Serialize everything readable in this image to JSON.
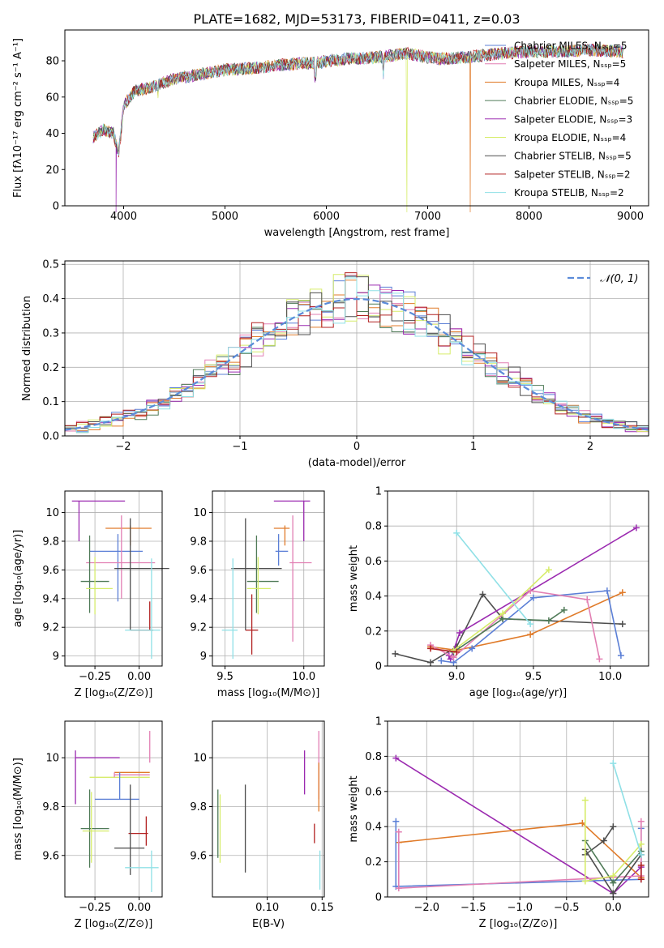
{
  "figure": {
    "title": "PLATE=1682, MJD=53173, FIBERID=0411, z=0.03"
  },
  "colors": {
    "chabrier_miles": "#5b7fd6",
    "salpeter_miles": "#e27fb3",
    "kroupa_miles": "#e07b2a",
    "chabrier_elodie": "#4f7a57",
    "salpeter_elodie": "#9b2ab0",
    "kroupa_elodie": "#d6ec6a",
    "chabrier_stelib": "#4d4d4d",
    "salpeter_stelib": "#b22020",
    "kroupa_stelib": "#8fe0e6",
    "gaussian": "#5b8bd9",
    "grid": "#b0b0b0"
  },
  "chart_data": [
    {
      "id": "spectrum",
      "type": "line",
      "title": "PLATE=1682, MJD=53173, FIBERID=0411, z=0.03",
      "xlabel": "wavelength [Angstrom, rest frame]",
      "ylabel": "Flux [fλ10⁻¹⁷ erg cm⁻² s⁻¹ A⁻¹]",
      "xlim": [
        3420,
        9180
      ],
      "ylim": [
        0,
        97
      ],
      "xticks": [
        4000,
        5000,
        6000,
        7000,
        8000,
        9000
      ],
      "yticks": [
        0,
        20,
        40,
        60,
        80
      ],
      "grid": false,
      "legend_position": "top-right",
      "legend": [
        {
          "label": "Chabrier MILES, Nₛₛₚ=5",
          "color_key": "chabrier_miles"
        },
        {
          "label": "Salpeter MILES, Nₛₛₚ=5",
          "color_key": "salpeter_miles"
        },
        {
          "label": "Kroupa MILES, Nₛₛₚ=4",
          "color_key": "kroupa_miles"
        },
        {
          "label": "Chabrier ELODIE, Nₛₛₚ=5",
          "color_key": "chabrier_elodie"
        },
        {
          "label": "Salpeter ELODIE, Nₛₛₚ=3",
          "color_key": "salpeter_elodie"
        },
        {
          "label": "Kroupa ELODIE, Nₛₛₚ=4",
          "color_key": "kroupa_elodie"
        },
        {
          "label": "Chabrier STELIB, Nₛₛₚ=5",
          "color_key": "chabrier_stelib"
        },
        {
          "label": "Salpeter STELIB, Nₛₛₚ=2",
          "color_key": "salpeter_stelib"
        },
        {
          "label": "Kroupa STELIB, Nₛₛₚ=2",
          "color_key": "kroupa_stelib"
        }
      ],
      "continuum": {
        "x": [
          3700,
          3800,
          3900,
          3950,
          4000,
          4100,
          4300,
          4500,
          4700,
          5000,
          5300,
          5600,
          5900,
          6200,
          6500,
          6800,
          7100,
          7400,
          7700,
          8000,
          8300,
          8600,
          8900
        ],
        "y": [
          38,
          42,
          40,
          28,
          55,
          63,
          66,
          70,
          72,
          75,
          76,
          78,
          79,
          81,
          82,
          84,
          81,
          82,
          84,
          85,
          85,
          86,
          85
        ]
      },
      "dips": [
        {
          "series": "salpeter_elodie",
          "x": 3925,
          "y": 0
        },
        {
          "series": "kroupa_elodie",
          "x": 6795,
          "y": 0
        },
        {
          "series": "kroupa_miles",
          "x": 7420,
          "y": 0
        }
      ]
    },
    {
      "id": "residuals",
      "type": "histogram",
      "xlabel": "(data-model)/error",
      "ylabel": "Normed distribution",
      "xlim": [
        -2.5,
        2.5
      ],
      "ylim": [
        0,
        0.51
      ],
      "xticks": [
        -2,
        -1,
        0,
        1,
        2
      ],
      "yticks": [
        0.0,
        0.1,
        0.2,
        0.3,
        0.4,
        0.5
      ],
      "grid": true,
      "legend_position": "top-right",
      "legend": [
        {
          "label": "𝒩(0, 1)",
          "color_key": "gaussian"
        }
      ],
      "bin_width": 0.1
    },
    {
      "id": "age-vs-Z",
      "type": "scatter",
      "xlabel": "Z [log₁₀(Z/Z⊙)]",
      "ylabel": "age  [log₁₀(age/yr)]",
      "xlim": [
        -0.42,
        0.13
      ],
      "ylim": [
        8.93,
        10.15
      ],
      "xticks": [
        -0.25,
        0.0
      ],
      "xtick_labels": [
        "−0.25",
        "0.00"
      ],
      "yticks": [
        9.0,
        9.2,
        9.4,
        9.6,
        9.8,
        10.0
      ],
      "grid": true,
      "points": [
        {
          "series": "salpeter_elodie",
          "x": -0.34,
          "xerr": [
            0.04,
            0.26
          ],
          "y": 10.08,
          "yerr": [
            0.28,
            0.0
          ]
        },
        {
          "series": "kroupa_miles",
          "x": -0.05,
          "xerr": [
            0.14,
            0.12
          ],
          "y": 9.89,
          "yerr": [
            0.12,
            0.02
          ]
        },
        {
          "series": "chabrier_miles",
          "x": -0.12,
          "xerr": [
            0.16,
            0.14
          ],
          "y": 9.73,
          "yerr": [
            0.35,
            0.12
          ]
        },
        {
          "series": "salpeter_miles",
          "x": -0.1,
          "xerr": [
            0.2,
            0.19
          ],
          "y": 9.65,
          "yerr": [
            0.25,
            0.33
          ]
        },
        {
          "series": "chabrier_stelib",
          "x": -0.05,
          "xerr": [
            0.09,
            0.22
          ],
          "y": 9.61,
          "yerr": [
            0.43,
            0.35
          ]
        },
        {
          "series": "chabrier_elodie",
          "x": -0.28,
          "xerr": [
            0.05,
            0.11
          ],
          "y": 9.52,
          "yerr": [
            0.22,
            0.32
          ]
        },
        {
          "series": "kroupa_elodie",
          "x": -0.25,
          "xerr": [
            0.05,
            0.1
          ],
          "y": 9.47,
          "yerr": [
            0.18,
            0.22
          ]
        },
        {
          "series": "salpeter_stelib",
          "x": 0.06,
          "xerr": [
            0.11,
            0.02
          ],
          "y": 9.18,
          "yerr": [
            0.0,
            0.2
          ]
        },
        {
          "series": "kroupa_stelib",
          "x": 0.07,
          "xerr": [
            0.15,
            0.05
          ],
          "y": 9.18,
          "yerr": [
            0.2,
            0.5
          ]
        }
      ]
    },
    {
      "id": "age-vs-mass",
      "type": "scatter",
      "xlabel": "mass [log₁₀(M/M⊙)]",
      "xlim": [
        9.42,
        10.13
      ],
      "ylim": [
        8.93,
        10.15
      ],
      "xticks": [
        9.5,
        10.0
      ],
      "xtick_labels": [
        "9.5",
        "10.0"
      ],
      "yticks": [
        9.0,
        9.2,
        9.4,
        9.6,
        9.8,
        10.0
      ],
      "grid": true,
      "points": [
        {
          "series": "salpeter_elodie",
          "x": 10.0,
          "xerr": [
            0.19,
            0.04
          ],
          "y": 10.08,
          "yerr": [
            0.28,
            0.0
          ]
        },
        {
          "series": "kroupa_miles",
          "x": 9.88,
          "xerr": [
            0.07,
            0.03
          ],
          "y": 9.89,
          "yerr": [
            0.12,
            0.02
          ]
        },
        {
          "series": "chabrier_miles",
          "x": 9.84,
          "xerr": [
            0.02,
            0.06
          ],
          "y": 9.73,
          "yerr": [
            0.1,
            0.12
          ]
        },
        {
          "series": "salpeter_miles",
          "x": 9.93,
          "xerr": [
            0.02,
            0.12
          ],
          "y": 9.65,
          "yerr": [
            0.55,
            0.33
          ]
        },
        {
          "series": "chabrier_stelib",
          "x": 9.63,
          "xerr": [
            0.09,
            0.23
          ],
          "y": 9.61,
          "yerr": [
            0.43,
            0.35
          ]
        },
        {
          "series": "chabrier_elodie",
          "x": 9.7,
          "xerr": [
            0.06,
            0.14
          ],
          "y": 9.52,
          "yerr": [
            0.22,
            0.32
          ]
        },
        {
          "series": "kroupa_elodie",
          "x": 9.71,
          "xerr": [
            0.07,
            0.08
          ],
          "y": 9.47,
          "yerr": [
            0.18,
            0.22
          ]
        },
        {
          "series": "salpeter_stelib",
          "x": 9.67,
          "xerr": [
            0.04,
            0.04
          ],
          "y": 9.18,
          "yerr": [
            0.17,
            0.25
          ]
        },
        {
          "series": "kroupa_stelib",
          "x": 9.55,
          "xerr": [
            0.07,
            0.03
          ],
          "y": 9.18,
          "yerr": [
            0.2,
            0.5
          ]
        }
      ]
    },
    {
      "id": "weight-vs-age",
      "type": "line",
      "xlabel": "age  [log₁₀(age/yr)]",
      "ylabel": "mass weight",
      "xlim": [
        8.55,
        10.25
      ],
      "ylim": [
        0,
        1
      ],
      "xticks": [
        9.0,
        9.5,
        10.0
      ],
      "xtick_labels": [
        "9.0",
        "9.5",
        "10.0"
      ],
      "yticks": [
        0.0,
        0.2,
        0.4,
        0.6,
        0.8,
        1.0
      ],
      "grid": true,
      "series": [
        {
          "key": "chabrier_stelib",
          "x": [
            8.6,
            8.83,
            9.0,
            9.17,
            9.3,
            10.08
          ],
          "y": [
            0.07,
            0.02,
            0.11,
            0.41,
            0.27,
            0.24
          ]
        },
        {
          "key": "salpeter_elodie",
          "x": [
            8.95,
            8.96,
            9.02,
            10.17
          ],
          "y": [
            0.06,
            0.04,
            0.19,
            0.79
          ]
        },
        {
          "key": "kroupa_miles",
          "x": [
            8.83,
            9.0,
            9.48,
            10.08
          ],
          "y": [
            0.11,
            0.09,
            0.18,
            0.42
          ]
        },
        {
          "key": "chabrier_miles",
          "x": [
            8.9,
            8.98,
            9.1,
            9.5,
            9.98,
            10.07
          ],
          "y": [
            0.03,
            0.02,
            0.1,
            0.39,
            0.43,
            0.06
          ]
        },
        {
          "key": "salpeter_miles",
          "x": [
            8.83,
            8.98,
            9.48,
            9.85,
            9.93
          ],
          "y": [
            0.12,
            0.05,
            0.43,
            0.38,
            0.04
          ]
        },
        {
          "key": "chabrier_elodie",
          "x": [
            8.98,
            9.3,
            9.6,
            9.7
          ],
          "y": [
            0.08,
            0.27,
            0.26,
            0.32
          ]
        },
        {
          "key": "kroupa_elodie",
          "x": [
            8.98,
            9.3,
            9.6
          ],
          "y": [
            0.09,
            0.3,
            0.55
          ]
        },
        {
          "key": "salpeter_stelib",
          "x": [
            8.83,
            9.0
          ],
          "y": [
            0.1,
            0.08
          ]
        },
        {
          "key": "kroupa_stelib",
          "x": [
            9.0,
            9.48
          ],
          "y": [
            0.76,
            0.24
          ]
        }
      ]
    },
    {
      "id": "mass-vs-Z",
      "type": "scatter",
      "xlabel": "Z [log₁₀(Z/Z⊙)]",
      "ylabel": "mass [log₁₀(M/M⊙)]",
      "xlim": [
        -0.42,
        0.13
      ],
      "ylim": [
        9.43,
        10.15
      ],
      "xticks": [
        -0.25,
        0.0
      ],
      "xtick_labels": [
        "−0.25",
        "0.00"
      ],
      "yticks": [
        9.6,
        9.8,
        10.0
      ],
      "grid": true,
      "points": [
        {
          "series": "salpeter_elodie",
          "x": -0.36,
          "xerr": [
            0.0,
            0.25
          ],
          "y": 10.0,
          "yerr": [
            0.19,
            0.03
          ]
        },
        {
          "series": "kroupa_elodie",
          "x": -0.14,
          "xerr": [
            0.14,
            0.2
          ],
          "y": 9.92,
          "yerr": [
            0.0,
            0.0
          ]
        },
        {
          "series": "kroupa_miles",
          "x": -0.14,
          "xerr": [
            0.0,
            0.2
          ],
          "y": 9.94,
          "yerr": [
            0.0,
            0.0
          ]
        },
        {
          "series": "salpeter_miles",
          "x": -0.14,
          "xerr": [
            0.0,
            0.2
          ],
          "y": 9.93,
          "yerr": [
            0.01,
            0.01
          ]
        },
        {
          "series": "chabrier_miles",
          "x": -0.11,
          "xerr": [
            0.14,
            0.11
          ],
          "y": 9.83,
          "yerr": [
            0.0,
            0.11
          ]
        },
        {
          "series": "chabrier_elodie",
          "x": -0.28,
          "xerr": [
            0.05,
            0.11
          ],
          "y": 9.71,
          "yerr": [
            0.16,
            0.16
          ]
        },
        {
          "series": "kroupa_elodie",
          "x": -0.27,
          "xerr": [
            0.05,
            0.1
          ],
          "y": 9.7,
          "yerr": [
            0.13,
            0.16
          ]
        },
        {
          "series": "salpeter_stelib",
          "x": 0.04,
          "xerr": [
            0.1,
            0.01
          ],
          "y": 9.69,
          "yerr": [
            0.05,
            0.07
          ]
        },
        {
          "series": "chabrier_stelib",
          "x": -0.05,
          "xerr": [
            0.09,
            0.08
          ],
          "y": 9.63,
          "yerr": [
            0.11,
            0.26
          ]
        },
        {
          "series": "kroupa_stelib",
          "x": 0.07,
          "xerr": [
            0.15,
            0.04
          ],
          "y": 9.55,
          "yerr": [
            0.1,
            0.07
          ]
        },
        {
          "series": "salpeter_miles",
          "x": 0.06,
          "xerr": [
            0.0,
            0.0
          ],
          "y": 10.03,
          "yerr": [
            0.05,
            0.08
          ]
        }
      ]
    },
    {
      "id": "mass-vs-EBV",
      "type": "scatter",
      "xlabel": "E(B-V)",
      "xlim": [
        0.05,
        0.152
      ],
      "ylim": [
        9.43,
        10.15
      ],
      "xticks": [
        0.1,
        0.15
      ],
      "xtick_labels": [
        "0.10",
        "0.15"
      ],
      "yticks": [
        9.6,
        9.8,
        10.0
      ],
      "grid": true,
      "points": [
        {
          "series": "salpeter_elodie",
          "x": 0.134,
          "y": 9.94,
          "yerr": [
            0.09,
            0.09
          ]
        },
        {
          "series": "salpeter_miles",
          "x": 0.147,
          "y": 9.97,
          "yerr": [
            0.14,
            0.14
          ]
        },
        {
          "series": "kroupa_miles",
          "x": 0.147,
          "y": 9.88,
          "yerr": [
            0.1,
            0.1
          ]
        },
        {
          "series": "salpeter_stelib",
          "x": 0.143,
          "y": 9.69,
          "yerr": [
            0.04,
            0.04
          ]
        },
        {
          "series": "chabrier_elodie",
          "x": 0.055,
          "y": 9.73,
          "yerr": [
            0.14,
            0.14
          ]
        },
        {
          "series": "kroupa_elodie",
          "x": 0.057,
          "y": 9.71,
          "yerr": [
            0.14,
            0.14
          ]
        },
        {
          "series": "chabrier_stelib",
          "x": 0.08,
          "y": 9.71,
          "yerr": [
            0.18,
            0.18
          ]
        },
        {
          "series": "kroupa_stelib",
          "x": 0.148,
          "y": 9.54,
          "yerr": [
            0.08,
            0.08
          ]
        }
      ]
    },
    {
      "id": "weight-vs-Z",
      "type": "line",
      "xlabel": "Z [log₁₀(Z/Z⊙)]",
      "ylabel": "mass weight",
      "xlim": [
        -2.42,
        0.38
      ],
      "ylim": [
        0,
        1
      ],
      "xticks": [
        -2.0,
        -1.5,
        -1.0,
        -0.5,
        0.0
      ],
      "xtick_labels": [
        "−2.0",
        "−1.5",
        "−1.0",
        "−0.5",
        "0.0"
      ],
      "yticks": [
        0.0,
        0.2,
        0.4,
        0.6,
        0.8,
        1.0
      ],
      "grid": true,
      "series": [
        {
          "key": "salpeter_elodie",
          "x": [
            -2.33,
            0.0,
            0.3
          ],
          "y": [
            0.79,
            0.02,
            0.17
          ]
        },
        {
          "key": "kroupa_miles",
          "x": [
            -2.3,
            -0.33,
            0.3
          ],
          "y": [
            0.31,
            0.42,
            0.11
          ]
        },
        {
          "key": "chabrier_miles",
          "x": [
            -2.33,
            -2.33,
            0.3,
            0.3
          ],
          "y": [
            0.43,
            0.06,
            0.1,
            0.39
          ]
        },
        {
          "key": "salpeter_miles",
          "x": [
            -2.3,
            -2.3,
            0.3,
            0.3
          ],
          "y": [
            0.37,
            0.05,
            0.12,
            0.43
          ]
        },
        {
          "key": "chabrier_stelib",
          "x": [
            -0.3,
            0.0,
            0.3
          ],
          "y": [
            0.27,
            0.02,
            0.24
          ]
        },
        {
          "key": "chabrier_stelib",
          "x": [
            -0.3,
            -0.1,
            0.0
          ],
          "y": [
            0.24,
            0.32,
            0.4
          ]
        },
        {
          "key": "chabrier_elodie",
          "x": [
            -0.3,
            0.0,
            0.3
          ],
          "y": [
            0.32,
            0.08,
            0.26
          ]
        },
        {
          "key": "kroupa_elodie",
          "x": [
            -0.3,
            -0.3,
            0.0,
            0.3
          ],
          "y": [
            0.55,
            0.09,
            0.12,
            0.3
          ]
        },
        {
          "key": "salpeter_stelib",
          "x": [
            0.3,
            0.3
          ],
          "y": [
            0.1,
            0.18
          ]
        },
        {
          "key": "kroupa_stelib",
          "x": [
            0.0,
            0.3
          ],
          "y": [
            0.76,
            0.24
          ]
        }
      ]
    }
  ]
}
